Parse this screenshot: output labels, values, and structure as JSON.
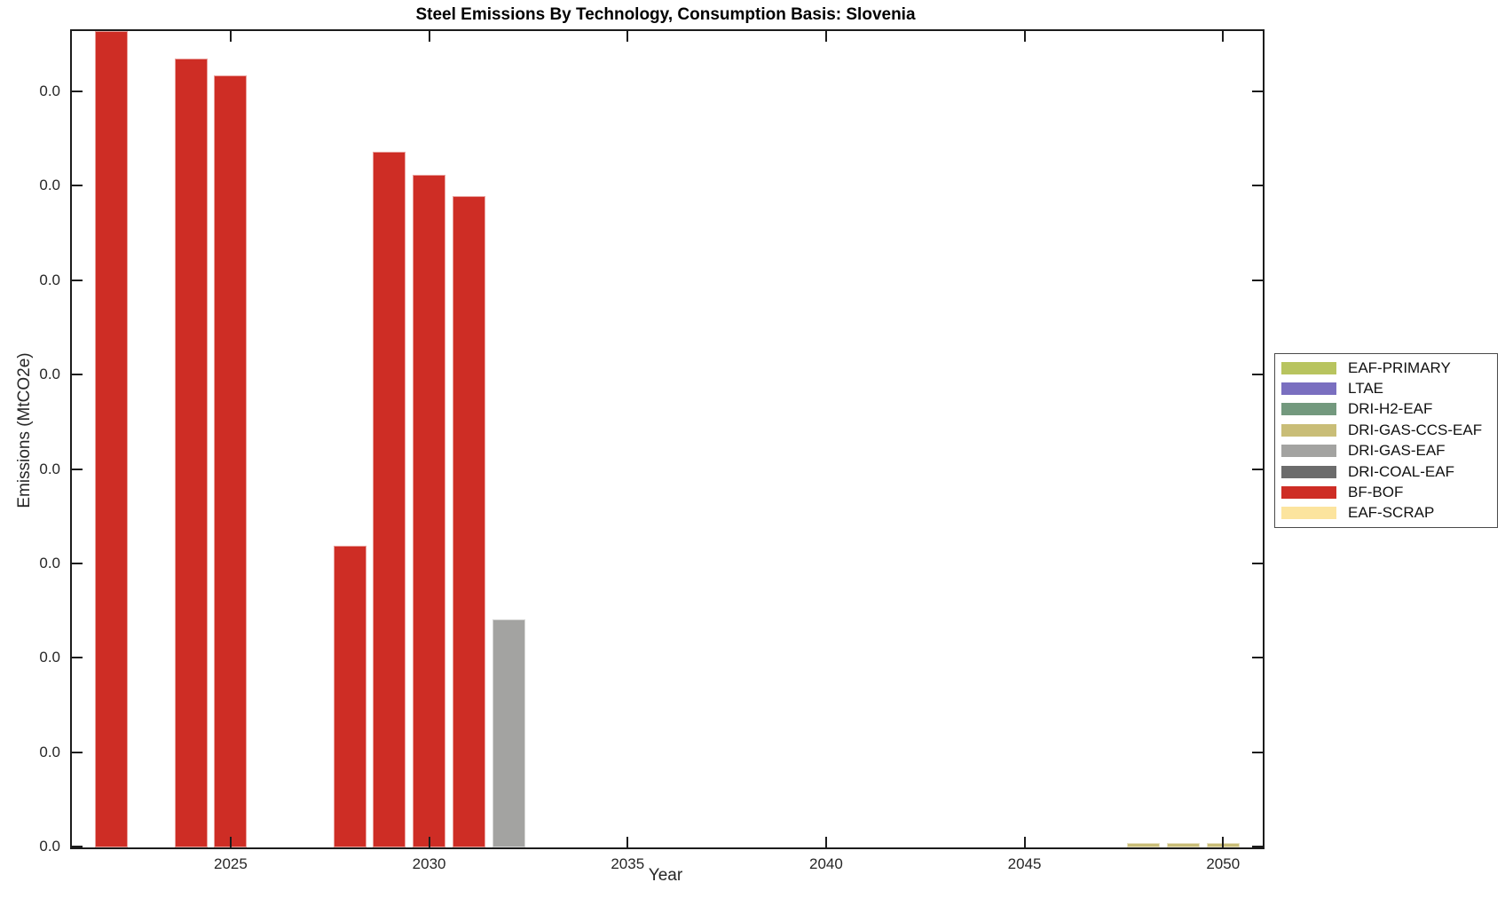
{
  "figure": {
    "title": "Steel Emissions By Technology, Consumption Basis: Slovenia",
    "xlabel": "Year",
    "ylabel": "Emissions (MtCO2e)"
  },
  "colors": {
    "axis": "#1c1c1c",
    "background": "#ffffff",
    "bf_bof_red": "#ce2d25",
    "dri_gas_eaf_gray": "#a3a3a1",
    "dri_gas_ccs_eaf_khaki": "#c9bd77"
  },
  "chart_data": {
    "type": "bar",
    "title": "Steel Emissions By Technology, Consumption Basis: Slovenia",
    "xlabel": "Year",
    "ylabel": "Emissions (MtCO2e)",
    "grid": false,
    "legend_position": "outside-right",
    "xlim": [
      2021,
      2051
    ],
    "x_tick_years": [
      2025,
      2030,
      2035,
      2040,
      2045,
      2050
    ],
    "y_tick_labels": [
      "0.0",
      "0.0",
      "0.0",
      "0.0",
      "0.0",
      "0.0",
      "0.0",
      "0.0",
      "0.0"
    ],
    "ylim_tick_units": [
      0,
      8.65
    ],
    "value_unit_note": "All y-axis tick labels display as 0.0 (values below one decimal precision). Bar values are expressed in y-tick-interval units (1.0 = one tick spacing) estimated from pixel heights; the 2022 bar reaches/clips at the axis top.",
    "series": [
      {
        "name": "EAF-PRIMARY",
        "color": "#b8c45f",
        "bars": []
      },
      {
        "name": "LTAE",
        "color": "#7a6fc0",
        "bars": []
      },
      {
        "name": "DRI-H2-EAF",
        "color": "#73997e",
        "bars": []
      },
      {
        "name": "DRI-GAS-CCS-EAF",
        "color": "#c9bd77",
        "bars": [
          {
            "year": 2048,
            "value": 0.05
          },
          {
            "year": 2049,
            "value": 0.05
          },
          {
            "year": 2050,
            "value": 0.05
          }
        ]
      },
      {
        "name": "DRI-GAS-EAF",
        "color": "#a3a3a1",
        "bars": [
          {
            "year": 2032,
            "value": 2.42
          }
        ]
      },
      {
        "name": "DRI-COAL-EAF",
        "color": "#6c6c6c",
        "bars": []
      },
      {
        "name": "BF-BOF",
        "color": "#ce2d25",
        "bars": [
          {
            "year": 2022,
            "value": 8.65
          },
          {
            "year": 2024,
            "value": 8.36
          },
          {
            "year": 2025,
            "value": 8.18
          },
          {
            "year": 2028,
            "value": 3.2
          },
          {
            "year": 2029,
            "value": 7.37
          },
          {
            "year": 2030,
            "value": 7.13
          },
          {
            "year": 2031,
            "value": 6.9
          }
        ]
      },
      {
        "name": "EAF-SCRAP",
        "color": "#fce49e",
        "bars": []
      }
    ]
  }
}
